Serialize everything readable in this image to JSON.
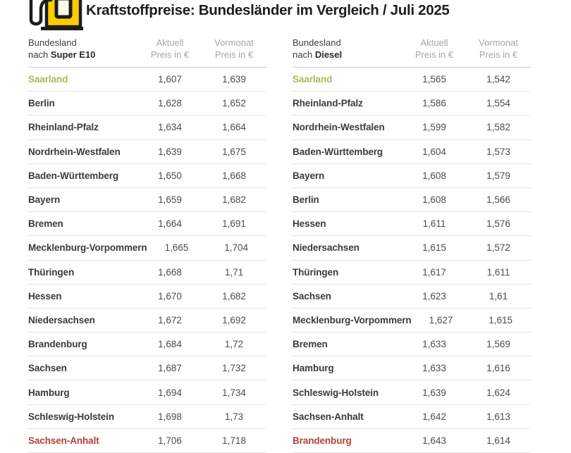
{
  "title": "Kraftstoffpreise: Bundesländer im Vergleich / Juli 2025",
  "colors": {
    "brand_yellow": "#ffcc00",
    "icon_outline": "#1d1d1b",
    "cheapest_green": "#a9ba55",
    "most_expensive_red": "#b23f38"
  },
  "chart_data": {
    "type": "table",
    "title": "Kraftstoffpreise: Bundesländer im Vergleich / Juli 2025",
    "columns": {
      "state": "Bundesland",
      "state_prefix": "nach",
      "current": "Aktuell",
      "previous": "Vormonat",
      "unit": "Preis in €"
    },
    "tables": [
      {
        "fuel": "Super E10",
        "rows": [
          {
            "state": "Saarland",
            "current": "1,607",
            "previous": "1,639",
            "highlight": "cheapest"
          },
          {
            "state": "Berlin",
            "current": "1,628",
            "previous": "1,652"
          },
          {
            "state": "Rheinland-Pfalz",
            "current": "1,634",
            "previous": "1,664"
          },
          {
            "state": "Nordrhein-Westfalen",
            "current": "1,639",
            "previous": "1,675"
          },
          {
            "state": "Baden-Württemberg",
            "current": "1,650",
            "previous": "1,668"
          },
          {
            "state": "Bayern",
            "current": "1,659",
            "previous": "1,682"
          },
          {
            "state": "Bremen",
            "current": "1,664",
            "previous": "1,691"
          },
          {
            "state": "Mecklenburg-Vorpommern",
            "current": "1,665",
            "previous": "1,704"
          },
          {
            "state": "Thüringen",
            "current": "1,668",
            "previous": "1,71"
          },
          {
            "state": "Hessen",
            "current": "1,670",
            "previous": "1,682"
          },
          {
            "state": "Niedersachsen",
            "current": "1,672",
            "previous": "1,692"
          },
          {
            "state": "Brandenburg",
            "current": "1,684",
            "previous": "1,72"
          },
          {
            "state": "Sachsen",
            "current": "1,687",
            "previous": "1,732"
          },
          {
            "state": "Hamburg",
            "current": "1,694",
            "previous": "1,734"
          },
          {
            "state": "Schleswig-Holstein",
            "current": "1,698",
            "previous": "1,73"
          },
          {
            "state": "Sachsen-Anhalt",
            "current": "1,706",
            "previous": "1,718",
            "highlight": "most-expensive"
          }
        ]
      },
      {
        "fuel": "Diesel",
        "rows": [
          {
            "state": "Saarland",
            "current": "1,565",
            "previous": "1,542",
            "highlight": "cheapest"
          },
          {
            "state": "Rheinland-Pfalz",
            "current": "1,586",
            "previous": "1,554"
          },
          {
            "state": "Nordrhein-Westfalen",
            "current": "1,599",
            "previous": "1,582"
          },
          {
            "state": "Baden-Württemberg",
            "current": "1,604",
            "previous": "1,573"
          },
          {
            "state": "Bayern",
            "current": "1,608",
            "previous": "1,579"
          },
          {
            "state": "Berlin",
            "current": "1,608",
            "previous": "1,566"
          },
          {
            "state": "Hessen",
            "current": "1,611",
            "previous": "1,576"
          },
          {
            "state": "Niedersachsen",
            "current": "1,615",
            "previous": "1,572"
          },
          {
            "state": "Thüringen",
            "current": "1,617",
            "previous": "1,611"
          },
          {
            "state": "Sachsen",
            "current": "1,623",
            "previous": "1,61"
          },
          {
            "state": "Mecklenburg-Vorpommern",
            "current": "1,627",
            "previous": "1,615"
          },
          {
            "state": "Bremen",
            "current": "1,633",
            "previous": "1,569"
          },
          {
            "state": "Hamburg",
            "current": "1,633",
            "previous": "1,616"
          },
          {
            "state": "Schleswig-Holstein",
            "current": "1,639",
            "previous": "1,624"
          },
          {
            "state": "Sachsen-Anhalt",
            "current": "1,642",
            "previous": "1,613"
          },
          {
            "state": "Brandenburg",
            "current": "1,643",
            "previous": "1,614",
            "highlight": "most-expensive"
          }
        ]
      }
    ]
  }
}
